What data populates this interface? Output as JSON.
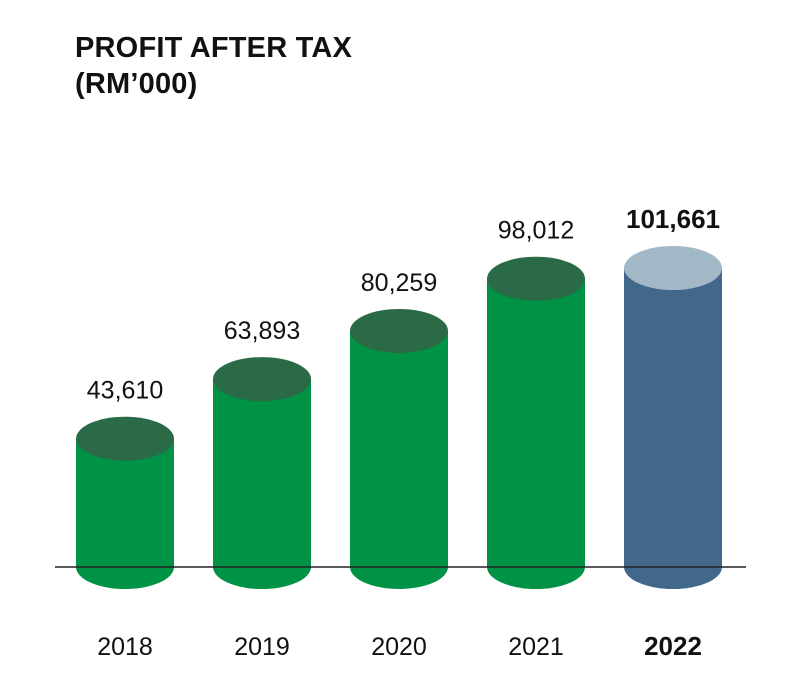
{
  "title_line1": "PROFIT AFTER TAX",
  "title_line2": "(RM’000)",
  "colors": {
    "bar_body": "#009245",
    "bar_top": "#2a6a46",
    "highlight_body": "#41678a",
    "highlight_top": "#a3b8c7",
    "baseline": "#222222",
    "text": "#111111"
  },
  "chart_data": {
    "type": "bar",
    "title": "PROFIT AFTER TAX (RM’000)",
    "categories": [
      "2018",
      "2019",
      "2020",
      "2021",
      "2022"
    ],
    "values": [
      43610,
      63893,
      80259,
      98012,
      101661
    ],
    "value_labels": [
      "43,610",
      "63,893",
      "80,259",
      "98,012",
      "101,661"
    ],
    "highlight_index": 4,
    "style": "cylinder",
    "ylim": [
      0,
      110000
    ],
    "grid": false,
    "legend": "none"
  }
}
